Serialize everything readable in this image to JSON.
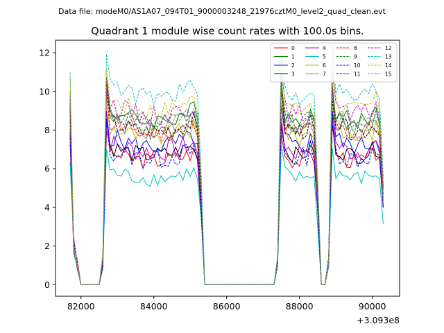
{
  "figure": {
    "file_caption": "Data file: modeM0/AS1A07_094T01_9000003248_21976cztM0_level2_quad_clean.evt"
  },
  "chart_data": {
    "type": "line",
    "title": "Quadrant 1 module wise count rates with 100.0s bins.",
    "xlabel": "",
    "ylabel": "",
    "x_offset_label": "+3.093e8",
    "xlim": [
      81300,
      90750
    ],
    "ylim": [
      -0.6,
      12.65
    ],
    "xticks": [
      82000,
      84000,
      86000,
      88000,
      90000
    ],
    "xtick_labels": [
      "82000",
      "84000",
      "86000",
      "88000",
      "90000"
    ],
    "yticks": [
      0,
      2,
      4,
      6,
      8,
      10,
      12
    ],
    "ytick_labels": [
      "0",
      "2",
      "4",
      "6",
      "8",
      "10",
      "12"
    ],
    "grid": false,
    "legend_position": "top-right",
    "segments": [
      {
        "start": 82700,
        "end": 85200
      },
      {
        "start": 87500,
        "end": 88400
      },
      {
        "start": 88900,
        "end": 90200
      }
    ],
    "series": [
      {
        "name": "0",
        "color": "#ff0000",
        "dash": "solid",
        "base": 6.9,
        "amp": 0.45
      },
      {
        "name": "1",
        "color": "#008000",
        "dash": "solid",
        "base": 9.1,
        "amp": 0.5
      },
      {
        "name": "2",
        "color": "#0000ff",
        "dash": "solid",
        "base": 7.7,
        "amp": 0.5
      },
      {
        "name": "3",
        "color": "#000000",
        "dash": "solid",
        "base": 7.2,
        "amp": 0.45
      },
      {
        "name": "4",
        "color": "#bf00bf",
        "dash": "solid",
        "base": 7.4,
        "amp": 0.55
      },
      {
        "name": "5",
        "color": "#00bfbf",
        "dash": "solid",
        "base": 5.9,
        "amp": 0.4
      },
      {
        "name": "6",
        "color": "#bfbf00",
        "dash": "solid",
        "base": 8.2,
        "amp": 0.5
      },
      {
        "name": "7",
        "color": "#808080",
        "dash": "solid",
        "base": 8.6,
        "amp": 0.45
      },
      {
        "name": "8",
        "color": "#ff0000",
        "dash": "dashed",
        "base": 8.4,
        "amp": 0.5
      },
      {
        "name": "9",
        "color": "#008000",
        "dash": "dashed",
        "base": 8.9,
        "amp": 0.5
      },
      {
        "name": "10",
        "color": "#0000ff",
        "dash": "dashed",
        "base": 7.0,
        "amp": 0.55
      },
      {
        "name": "11",
        "color": "#000000",
        "dash": "dashed",
        "base": 8.5,
        "amp": 0.5
      },
      {
        "name": "12",
        "color": "#bf00bf",
        "dash": "dashed",
        "base": 9.4,
        "amp": 0.55
      },
      {
        "name": "13",
        "color": "#00bfbf",
        "dash": "dashed",
        "base": 10.4,
        "amp": 0.5
      },
      {
        "name": "14",
        "color": "#bfbf00",
        "dash": "dashed",
        "base": 9.7,
        "amp": 0.5
      },
      {
        "name": "15",
        "color": "#808080",
        "dash": "dashed",
        "base": 8.9,
        "amp": 0.45
      }
    ]
  }
}
